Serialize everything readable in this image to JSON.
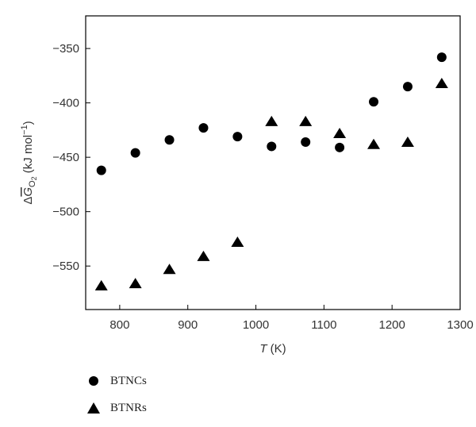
{
  "chart_data": {
    "type": "scatter",
    "xlabel": {
      "italic": "T",
      "rest": " (K)"
    },
    "ylabel": {
      "prefix": "Δ",
      "var": "G",
      "sub": "O",
      "sub2": "2",
      "rest": " (kJ mol",
      "sup": "−1",
      "close": ")"
    },
    "xlim": [
      750,
      1300
    ],
    "ylim": [
      -590,
      -320
    ],
    "xticks": [
      800,
      900,
      1000,
      1100,
      1200,
      1300
    ],
    "xtick_labels": [
      "800",
      "900",
      "1000",
      "1100",
      "1200",
      "1300"
    ],
    "yticks": [
      -350,
      -400,
      -450,
      -500,
      -550
    ],
    "ytick_labels": [
      "−350",
      "−400",
      "−450",
      "−500",
      "−550"
    ],
    "grid": false,
    "legend_position": "bottom-left-outside",
    "series": [
      {
        "name": "BTNCs",
        "marker": "circle",
        "color": "#000000",
        "x": [
          773,
          823,
          873,
          923,
          973,
          1023,
          1073,
          1123,
          1173,
          1223,
          1273
        ],
        "y": [
          -462,
          -446,
          -434,
          -423,
          -431,
          -440,
          -436,
          -441,
          -399,
          -385,
          -358
        ]
      },
      {
        "name": "BTNRs",
        "marker": "triangle",
        "color": "#000000",
        "x": [
          773,
          823,
          873,
          923,
          973,
          1023,
          1073,
          1123,
          1173,
          1223,
          1273
        ],
        "y": [
          -568,
          -566,
          -553,
          -541,
          -528,
          -417,
          -417,
          -428,
          -438,
          -436,
          -382
        ]
      }
    ]
  }
}
